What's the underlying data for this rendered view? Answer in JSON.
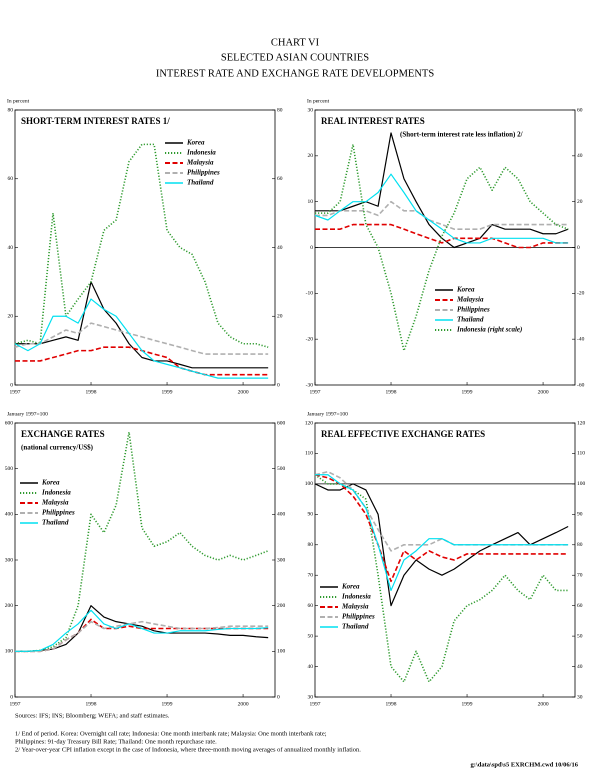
{
  "header": {
    "lines": [
      "CHART VI",
      "SELECTED ASIAN COUNTRIES",
      "INTEREST RATE AND EXCHANGE RATE DEVELOPMENTS"
    ]
  },
  "chart_data": [
    {
      "type": "line",
      "title": "SHORT-TERM INTEREST RATES 1/",
      "unit_label": "In percent",
      "x": [
        1997,
        1997.17,
        1997.33,
        1997.5,
        1997.67,
        1997.83,
        1998,
        1998.17,
        1998.33,
        1998.5,
        1998.67,
        1998.83,
        1999,
        1999.17,
        1999.33,
        1999.5,
        1999.67,
        1999.83,
        2000,
        2000.17,
        2000.33
      ],
      "xlim": [
        1997,
        2000.42
      ],
      "xticks": [
        1997,
        1998,
        1999,
        2000
      ],
      "ylim": [
        0,
        80
      ],
      "yticks": [
        0,
        20,
        40,
        60,
        80
      ],
      "y2lim": [
        0,
        80
      ],
      "y2ticks": [
        0,
        20,
        40,
        60,
        80
      ],
      "legend": "top-right",
      "series": [
        {
          "name": "Korea",
          "color": "#000000",
          "style": "solid",
          "values": [
            12,
            12,
            12,
            13,
            14,
            13,
            30,
            22,
            18,
            12,
            8,
            7,
            7,
            6,
            5,
            5,
            5,
            5,
            5,
            5,
            5
          ]
        },
        {
          "name": "Indonesia",
          "color": "#2e9a2e",
          "style": "dotted",
          "values": [
            12,
            13,
            12,
            50,
            20,
            25,
            30,
            45,
            48,
            65,
            70,
            70,
            45,
            40,
            38,
            30,
            18,
            14,
            12,
            12,
            11
          ]
        },
        {
          "name": "Malaysia",
          "color": "#e00000",
          "style": "dashed",
          "values": [
            7,
            7,
            7,
            8,
            9,
            10,
            10,
            11,
            11,
            11,
            10,
            9,
            8,
            5,
            4,
            3,
            3,
            3,
            3,
            3,
            3
          ]
        },
        {
          "name": "Philippines",
          "color": "#b0b0b0",
          "style": "dashed",
          "values": [
            11,
            12,
            12,
            14,
            16,
            15,
            18,
            17,
            16,
            15,
            14,
            13,
            12,
            11,
            10,
            9,
            9,
            9,
            9,
            9,
            9
          ]
        },
        {
          "name": "Thailand",
          "color": "#00e0f0",
          "style": "solid",
          "values": [
            12,
            10,
            12,
            20,
            20,
            18,
            25,
            22,
            20,
            15,
            10,
            7,
            6,
            5,
            4,
            3,
            2,
            2,
            2,
            2,
            2
          ]
        }
      ]
    },
    {
      "type": "line",
      "title": "REAL INTEREST RATES",
      "subtitle": "(Short-term interest rate less inflation) 2/",
      "unit_label": "In percent",
      "x": [
        1997,
        1997.17,
        1997.33,
        1997.5,
        1997.67,
        1997.83,
        1998,
        1998.17,
        1998.33,
        1998.5,
        1998.67,
        1998.83,
        1999,
        1999.17,
        1999.33,
        1999.5,
        1999.67,
        1999.83,
        2000,
        2000.17,
        2000.33
      ],
      "xlim": [
        1997,
        2000.42
      ],
      "xticks": [
        1997,
        1998,
        1999,
        2000
      ],
      "ylim": [
        -30,
        30
      ],
      "yticks": [
        -30,
        -20,
        -10,
        0,
        10,
        20,
        30
      ],
      "y2lim": [
        -60,
        60
      ],
      "y2ticks": [
        -60,
        -40,
        -20,
        0,
        20,
        40,
        60
      ],
      "reference_line": 0,
      "legend": "bottom-center",
      "series": [
        {
          "name": "Korea",
          "color": "#000000",
          "style": "solid",
          "values": [
            8,
            8,
            8,
            9,
            10,
            9,
            25,
            15,
            10,
            5,
            2,
            0,
            1,
            2,
            5,
            4,
            4,
            4,
            3,
            3,
            4
          ]
        },
        {
          "name": "Malaysia",
          "color": "#e00000",
          "style": "dashed",
          "values": [
            4,
            4,
            4,
            5,
            5,
            5,
            5,
            4,
            3,
            2,
            1,
            2,
            2,
            2,
            2,
            1,
            0,
            0,
            1,
            1,
            1
          ]
        },
        {
          "name": "Philippines",
          "color": "#b0b0b0",
          "style": "dashed",
          "values": [
            7,
            7,
            8,
            8,
            8,
            7,
            10,
            8,
            8,
            6,
            5,
            4,
            4,
            4,
            5,
            5,
            5,
            5,
            5,
            5,
            5
          ]
        },
        {
          "name": "Thailand",
          "color": "#00e0f0",
          "style": "solid",
          "values": [
            7,
            6,
            8,
            10,
            10,
            12,
            16,
            12,
            8,
            6,
            4,
            2,
            1,
            1,
            2,
            2,
            2,
            2,
            2,
            1,
            1
          ]
        },
        {
          "name": "Indonesia (right scale)",
          "color": "#2e9a2e",
          "style": "dotted",
          "axis": "y2",
          "values": [
            15,
            15,
            20,
            45,
            10,
            0,
            -20,
            -45,
            -30,
            -10,
            5,
            15,
            30,
            35,
            25,
            35,
            30,
            20,
            15,
            10,
            8
          ]
        }
      ]
    },
    {
      "type": "line",
      "title": "EXCHANGE RATES",
      "subtitle": "(national currency/US$)",
      "unit_label": "January 1997=100",
      "x": [
        1997,
        1997.17,
        1997.33,
        1997.5,
        1997.67,
        1997.83,
        1998,
        1998.17,
        1998.33,
        1998.5,
        1998.67,
        1998.83,
        1999,
        1999.17,
        1999.33,
        1999.5,
        1999.67,
        1999.83,
        2000,
        2000.17,
        2000.33
      ],
      "xlim": [
        1997,
        2000.42
      ],
      "xticks": [
        1997,
        1998,
        1999,
        2000
      ],
      "ylim": [
        0,
        600
      ],
      "yticks": [
        0,
        100,
        200,
        300,
        400,
        500,
        600
      ],
      "y2lim": [
        0,
        600
      ],
      "y2ticks": [
        0,
        100,
        200,
        300,
        400,
        500,
        600
      ],
      "legend": "top-left",
      "series": [
        {
          "name": "Korea",
          "color": "#000000",
          "style": "solid",
          "values": [
            100,
            100,
            102,
            105,
            115,
            140,
            200,
            175,
            165,
            160,
            155,
            145,
            140,
            140,
            140,
            140,
            138,
            135,
            135,
            132,
            130
          ]
        },
        {
          "name": "Indonesia",
          "color": "#2e9a2e",
          "style": "dotted",
          "values": [
            100,
            100,
            102,
            110,
            130,
            200,
            400,
            360,
            420,
            580,
            370,
            330,
            340,
            360,
            330,
            310,
            300,
            310,
            300,
            310,
            320
          ]
        },
        {
          "name": "Malaysia",
          "color": "#e00000",
          "style": "dashed",
          "values": [
            100,
            100,
            100,
            105,
            125,
            140,
            170,
            150,
            150,
            155,
            150,
            150,
            150,
            150,
            150,
            150,
            150,
            150,
            150,
            150,
            150
          ]
        },
        {
          "name": "Philippines",
          "color": "#b0b0b0",
          "style": "dashed",
          "values": [
            100,
            100,
            100,
            105,
            125,
            140,
            165,
            150,
            155,
            160,
            165,
            160,
            155,
            150,
            150,
            150,
            152,
            155,
            155,
            155,
            155
          ]
        },
        {
          "name": "Thailand",
          "color": "#00e0f0",
          "style": "solid",
          "values": [
            100,
            100,
            102,
            115,
            140,
            160,
            190,
            160,
            150,
            160,
            150,
            140,
            140,
            145,
            145,
            145,
            148,
            150,
            150,
            150,
            152
          ]
        }
      ]
    },
    {
      "type": "line",
      "title": "REAL EFFECTIVE EXCHANGE RATES",
      "unit_label": "January 1997=100",
      "x": [
        1997,
        1997.17,
        1997.33,
        1997.5,
        1997.67,
        1997.83,
        1998,
        1998.17,
        1998.33,
        1998.5,
        1998.67,
        1998.83,
        1999,
        1999.17,
        1999.33,
        1999.5,
        1999.67,
        1999.83,
        2000,
        2000.17,
        2000.33
      ],
      "xlim": [
        1997,
        2000.42
      ],
      "xticks": [
        1997,
        1998,
        1999,
        2000
      ],
      "ylim": [
        30,
        120
      ],
      "yticks": [
        30,
        40,
        50,
        60,
        70,
        80,
        90,
        100,
        110,
        120
      ],
      "y2lim": [
        30,
        120
      ],
      "y2ticks": [
        30,
        40,
        50,
        60,
        70,
        80,
        90,
        100,
        110,
        120
      ],
      "reference_line": 100,
      "legend": "bottom-left",
      "series": [
        {
          "name": "Korea",
          "color": "#000000",
          "style": "solid",
          "values": [
            100,
            98,
            98,
            100,
            98,
            90,
            60,
            70,
            75,
            72,
            70,
            72,
            75,
            78,
            80,
            82,
            84,
            80,
            82,
            84,
            86
          ]
        },
        {
          "name": "Indonesia",
          "color": "#2e9a2e",
          "style": "dotted",
          "values": [
            103,
            100,
            100,
            98,
            95,
            70,
            40,
            35,
            45,
            35,
            40,
            55,
            60,
            62,
            65,
            70,
            65,
            62,
            70,
            65,
            65
          ]
        },
        {
          "name": "Malaysia",
          "color": "#e00000",
          "style": "dashed",
          "values": [
            103,
            102,
            100,
            96,
            90,
            80,
            68,
            78,
            75,
            78,
            76,
            75,
            77,
            77,
            77,
            77,
            77,
            77,
            77,
            77,
            77
          ]
        },
        {
          "name": "Philippines",
          "color": "#b0b0b0",
          "style": "dashed",
          "values": [
            103,
            104,
            102,
            98,
            92,
            85,
            78,
            80,
            80,
            80,
            82,
            80,
            80,
            80,
            80,
            80,
            80,
            80,
            80,
            80,
            80
          ]
        },
        {
          "name": "Thailand",
          "color": "#00e0f0",
          "style": "solid",
          "values": [
            103,
            103,
            100,
            98,
            92,
            80,
            65,
            75,
            78,
            82,
            82,
            80,
            80,
            80,
            80,
            80,
            80,
            80,
            80,
            80,
            80
          ]
        }
      ]
    }
  ],
  "footnotes": {
    "sources": "Sources: IFS; INS; Bloomberg; WEFA; and staff estimates.",
    "notes": [
      "1/ End of period. Korea: Overnight call rate; Indonesia: One month interbank rate; Malaysia: One month interbank rate;",
      "Philippines: 91-day Treasury Bill Rate; Thailand: One month repurchase rate.",
      "2/ Year-over-year CPI inflation except in the case of Indonesia, where three-month moving averages of annualized monthly inflation."
    ],
    "file": "g:\\data\\spd\\s5 EXRCHM.cwd 10/06/16"
  }
}
